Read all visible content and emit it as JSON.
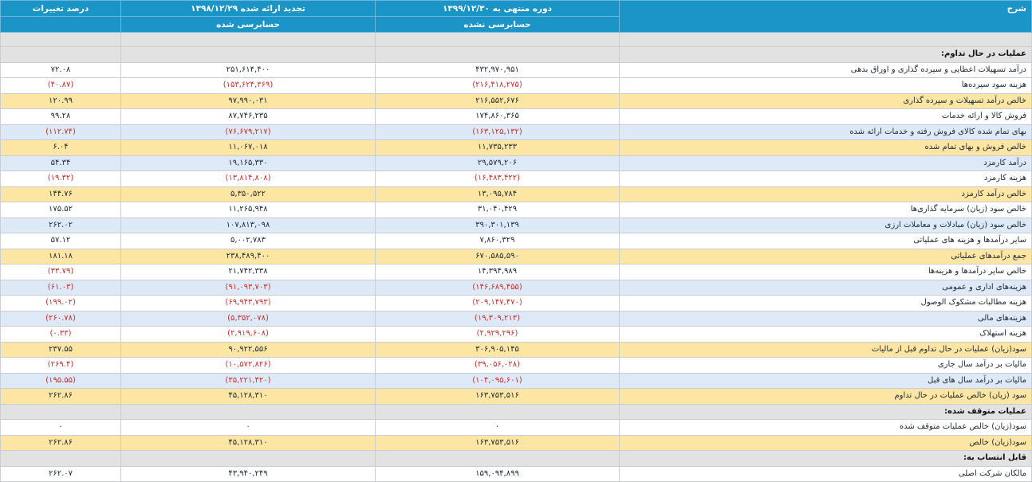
{
  "header": {
    "description": "شرح",
    "current_period": "دوره منتهی به ۱۳۹۹/۱۲/۳۰",
    "current_status": "حسابرسی نشده",
    "previous_period": "تجدید ارائه شده ۱۳۹۸/۱۲/۲۹",
    "previous_status": "حسابرسی شده",
    "change_percent": "درصد تغییرات"
  },
  "rows": [
    {
      "type": "gap"
    },
    {
      "type": "section",
      "desc": "عملیات در حال تداوم:"
    },
    {
      "type": "data",
      "style": "white",
      "desc": "درآمد تسهیلات اعطایی و سپرده گذاری و اوراق بدهی",
      "cur": "۴۳۲,۹۷۰,۹۵۱",
      "prev": "۲۵۱,۶۱۴,۴۰۰",
      "pct": "۷۲.۰۸"
    },
    {
      "type": "data",
      "style": "white",
      "desc": "هزینه سود سپرده‌ها",
      "cur": "(۲۱۶,۴۱۸,۲۷۵)",
      "prev": "(۱۵۳,۶۲۴,۳۶۹)",
      "pct": "(۴۰.۸۷)"
    },
    {
      "type": "data",
      "style": "yellow",
      "desc": "خالص درآمد تسهیلات و سپرده گذاری",
      "cur": "۲۱۶,۵۵۲,۶۷۶",
      "prev": "۹۷,۹۹۰,۰۳۱",
      "pct": "۱۲۰.۹۹"
    },
    {
      "type": "data",
      "style": "white",
      "desc": "فروش کالا و ارائه خدمات",
      "cur": "۱۷۴,۸۶۰,۳۶۵",
      "prev": "۸۷,۷۴۶,۲۳۵",
      "pct": "۹۹.۲۸"
    },
    {
      "type": "data",
      "style": "blue",
      "desc": "بهای تمام شده کالای فروش رفته و خدمات ارائه شده",
      "cur": "(۱۶۳,۱۲۵,۱۳۲)",
      "prev": "(۷۶,۶۷۹,۲۱۷)",
      "pct": "(۱۱۲.۷۴)"
    },
    {
      "type": "data",
      "style": "yellow",
      "desc": "خالص فروش و بهای تمام شده",
      "cur": "۱۱,۷۳۵,۲۳۳",
      "prev": "۱۱,۰۶۷,۰۱۸",
      "pct": "۶.۰۴"
    },
    {
      "type": "data",
      "style": "blue",
      "desc": "درآمد کارمزد",
      "cur": "۲۹,۵۷۹,۲۰۶",
      "prev": "۱۹,۱۶۵,۳۳۰",
      "pct": "۵۴.۳۴"
    },
    {
      "type": "data",
      "style": "white",
      "desc": "هزینه کارمزد",
      "cur": "(۱۶,۴۸۳,۴۲۲)",
      "prev": "(۱۳,۸۱۴,۸۰۸)",
      "pct": "(۱۹.۳۲)"
    },
    {
      "type": "data",
      "style": "yellow",
      "desc": "خالص درآمد کارمزد",
      "cur": "۱۳,۰۹۵,۷۸۴",
      "prev": "۵,۳۵۰,۵۲۲",
      "pct": "۱۴۴.۷۶"
    },
    {
      "type": "data",
      "style": "white",
      "desc": "خالص سود (زیان) سرمایه گذاری‌ها",
      "cur": "۳۱,۰۴۰,۴۲۹",
      "prev": "۱۱,۲۶۵,۹۴۸",
      "pct": "۱۷۵.۵۲"
    },
    {
      "type": "data",
      "style": "blue",
      "desc": "خالص سود (زیان) مبادلات و معاملات ارزی",
      "cur": "۳۹۰,۳۰۱,۱۳۹",
      "prev": "۱۰۷,۸۱۳,۰۹۸",
      "pct": "۲۶۲.۰۲"
    },
    {
      "type": "data",
      "style": "white",
      "desc": "سایر درآمدها و هزینه های عملیاتی",
      "cur": "۷,۸۶۰,۳۲۹",
      "prev": "۵,۰۰۲,۷۸۳",
      "pct": "۵۷.۱۲"
    },
    {
      "type": "data",
      "style": "yellow",
      "desc": "جمع درآمدهای عملیاتی",
      "cur": "۶۷۰,۵۸۵,۵۹۰",
      "prev": "۲۳۸,۴۸۹,۴۰۰",
      "pct": "۱۸۱.۱۸"
    },
    {
      "type": "data",
      "style": "white",
      "desc": "خالص سایر درآمدها و هزینه‌ها",
      "cur": "۱۴,۳۹۴,۹۸۹",
      "prev": "۲۱,۷۴۲,۳۳۸",
      "pct": "(۳۳.۷۹)"
    },
    {
      "type": "data",
      "style": "blue",
      "desc": "هزینه‌های اداری و عمومی",
      "cur": "(۱۴۶,۶۸۹,۴۵۵)",
      "prev": "(۹۱,۰۹۳,۷۰۳)",
      "pct": "(۶۱.۰۳)"
    },
    {
      "type": "data",
      "style": "white",
      "desc": "هزینه مطالبات مشکوک الوصول",
      "cur": "(۲۰۹,۱۴۷,۴۷۰)",
      "prev": "(۶۹,۹۴۳,۷۹۳)",
      "pct": "(۱۹۹.۰۲)"
    },
    {
      "type": "data",
      "style": "blue",
      "desc": "هزینه‌های مالی",
      "cur": "(۱۹,۳۰۹,۲۱۳)",
      "prev": "(۵,۳۵۲,۰۷۸)",
      "pct": "(۲۶۰.۷۸)"
    },
    {
      "type": "data",
      "style": "white",
      "desc": "هزینه استهلاک",
      "cur": "(۲,۹۲۹,۲۹۶)",
      "prev": "(۲,۹۱۹,۶۰۸)",
      "pct": "(۰.۳۳)"
    },
    {
      "type": "data",
      "style": "yellow",
      "desc": "سود(زیان) عملیات در حال تداوم قبل از مالیات",
      "cur": "۳۰۶,۹۰۵,۱۴۵",
      "prev": "۹۰,۹۲۲,۵۵۶",
      "pct": "۲۳۷.۵۵"
    },
    {
      "type": "data",
      "style": "white",
      "desc": "مالیات بر درآمد سال جاری",
      "cur": "(۳۹,۰۵۶,۰۲۸)",
      "prev": "(۱۰,۵۷۲,۸۲۶)",
      "pct": "(۲۶۹.۴)"
    },
    {
      "type": "data",
      "style": "blue",
      "desc": "مالیات بر درآمد سال های قبل",
      "cur": "(۱۰۴,۰۹۵,۶۰۱)",
      "prev": "(۳۵,۲۲۱,۴۲۰)",
      "pct": "(۱۹۵.۵۵)"
    },
    {
      "type": "data",
      "style": "yellow",
      "desc": "سود (زیان) خالص عملیات در حال تداوم",
      "cur": "۱۶۳,۷۵۳,۵۱۶",
      "prev": "۴۵,۱۲۸,۳۱۰",
      "pct": "۲۶۲.۸۶"
    },
    {
      "type": "section",
      "desc": "عملیات متوقف شده:"
    },
    {
      "type": "data",
      "style": "white",
      "desc": "سود(زیان) خالص عملیات متوقف شده",
      "cur": "۰",
      "prev": "۰",
      "pct": "۰"
    },
    {
      "type": "data",
      "style": "yellow",
      "desc": "سود(زیان) خالص",
      "cur": "۱۶۳,۷۵۳,۵۱۶",
      "prev": "۴۵,۱۲۸,۳۱۰",
      "pct": "۲۶۲.۸۶"
    },
    {
      "type": "section",
      "desc": "قابل انتساب به:"
    },
    {
      "type": "data",
      "style": "white",
      "desc": "مالکان شرکت اصلی",
      "cur": "۱۵۹,۰۹۴,۸۹۹",
      "prev": "۴۳,۹۴۰,۲۴۹",
      "pct": "۲۶۲.۰۷"
    }
  ]
}
